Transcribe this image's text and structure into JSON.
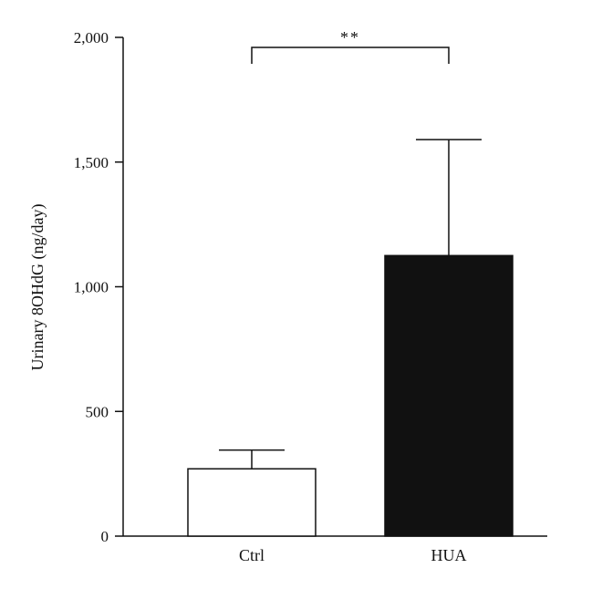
{
  "chart_data": {
    "type": "bar",
    "title": "",
    "xlabel": "",
    "ylabel": "Urinary 8OHdG (ng/day)",
    "ylim": [
      0,
      2000
    ],
    "yticks": [
      0,
      500,
      1000,
      1500,
      2000
    ],
    "ytick_labels": [
      "0",
      "500",
      "1,000",
      "1,500",
      "2,000"
    ],
    "categories": [
      "Ctrl",
      "HUA"
    ],
    "values": [
      270,
      1125
    ],
    "error_upper": [
      345,
      1590
    ],
    "bar_colors": [
      "#ffffff",
      "#111111"
    ],
    "bar_edge_color": "#111111",
    "grid": false,
    "legend": "none",
    "significance": {
      "from": 0,
      "to": 1,
      "label": "**"
    }
  }
}
